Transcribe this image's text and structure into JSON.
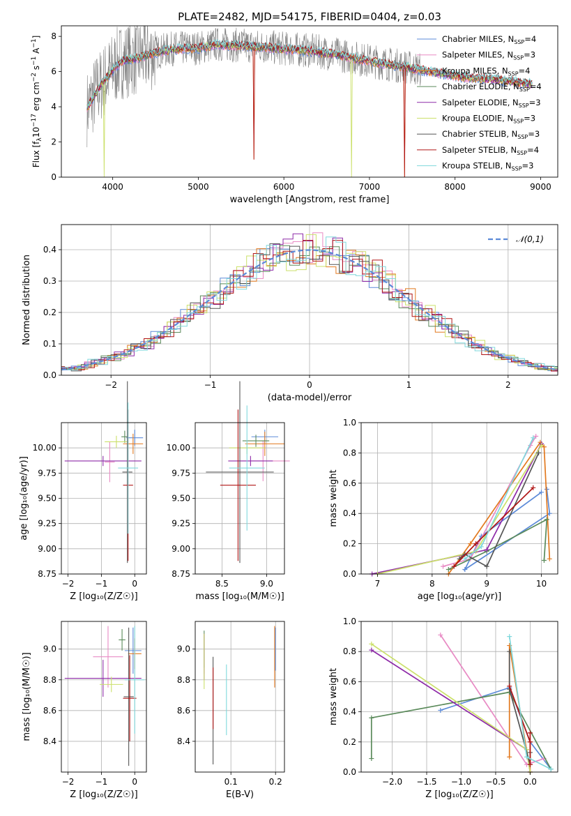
{
  "figure_title": "PLATE=2482, MJD=54175, FIBERID=0404, z=0.03",
  "models": [
    {
      "name": "Chabrier MILES, N",
      "sub": "SSP",
      "tail": "=4",
      "color": "#5b8ad8"
    },
    {
      "name": "Salpeter MILES, N",
      "sub": "SSP",
      "tail": "=3",
      "color": "#e88ac4"
    },
    {
      "name": "Kroupa MILES, N",
      "sub": "SSP",
      "tail": "=4",
      "color": "#e2791f"
    },
    {
      "name": "Chabrier ELODIE, N",
      "sub": "SSP",
      "tail": "=4",
      "color": "#5a8a5a"
    },
    {
      "name": "Salpeter ELODIE, N",
      "sub": "SSP",
      "tail": "=3",
      "color": "#8e2aa8"
    },
    {
      "name": "Kroupa ELODIE, N",
      "sub": "SSP",
      "tail": "=3",
      "color": "#cbe06a"
    },
    {
      "name": "Chabrier STELIB, N",
      "sub": "SSP",
      "tail": "=3",
      "color": "#555555"
    },
    {
      "name": "Salpeter STELIB, N",
      "sub": "SSP",
      "tail": "=4",
      "color": "#b01515"
    },
    {
      "name": "Kroupa STELIB, N",
      "sub": "SSP",
      "tail": "=3",
      "color": "#7fd8dc"
    }
  ],
  "chart_data": [
    {
      "id": "spectrum",
      "type": "line",
      "xlabel": "wavelength [Angstrom, rest frame]",
      "ylabel_main": "Flux [f",
      "ylabel_sub": "λ",
      "ylabel_rest": "10",
      "ylabel_sup1": "−17",
      "ylabel_mid": " erg cm",
      "ylabel_sup2": "−2",
      "ylabel_mid2": " s",
      "ylabel_sup3": "−1",
      "ylabel_end": " A",
      "ylabel_sup4": "−1",
      "ylabel_close": "]",
      "xlim": [
        3400,
        9200
      ],
      "ylim": [
        0,
        8.6
      ],
      "xticks": [
        4000,
        5000,
        6000,
        7000,
        8000,
        9000
      ],
      "yticks": [
        0,
        2,
        4,
        6,
        8
      ],
      "data_color": "#808080",
      "continuum": [
        [
          3700,
          3.9
        ],
        [
          3800,
          4.8
        ],
        [
          3900,
          5.5
        ],
        [
          4000,
          6.1
        ],
        [
          4100,
          6.6
        ],
        [
          4300,
          6.8
        ],
        [
          4500,
          7.1
        ],
        [
          4700,
          7.3
        ],
        [
          5000,
          7.35
        ],
        [
          5200,
          7.55
        ],
        [
          5500,
          7.5
        ],
        [
          5800,
          7.4
        ],
        [
          6000,
          7.3
        ],
        [
          6300,
          7.2
        ],
        [
          6600,
          7.0
        ],
        [
          6900,
          6.7
        ],
        [
          7200,
          6.45
        ],
        [
          7500,
          6.2
        ],
        [
          7800,
          5.95
        ],
        [
          8100,
          5.7
        ],
        [
          8400,
          5.6
        ],
        [
          8700,
          5.45
        ],
        [
          8900,
          5.3
        ]
      ]
    },
    {
      "id": "residuals",
      "type": "bar",
      "xlabel": "(data-model)/error",
      "ylabel": "Normed distribution",
      "xlim": [
        -2.5,
        2.5
      ],
      "ylim": [
        0,
        0.48
      ],
      "xticks": [
        -2,
        -1,
        0,
        1,
        2
      ],
      "yticks": [
        0,
        0.1,
        0.2,
        0.3,
        0.4
      ],
      "reference_label": "𝒩(0,1)",
      "reference_color": "#5b8ad8"
    },
    {
      "id": "age_vs_Z",
      "type": "scatter",
      "xlabel": "Z [log₁₀(Z/Z☉)]",
      "ylabel": "age  [log₁₀(age/yr)]",
      "xlim": [
        -2.2,
        0.35
      ],
      "ylim": [
        8.75,
        10.25
      ],
      "xticks": [
        -2,
        -1,
        0
      ],
      "yticks": [
        8.75,
        9.0,
        9.25,
        9.5,
        9.75,
        10.0
      ],
      "points": [
        {
          "x": 0.0,
          "y": 10.1,
          "xerr": 0.25,
          "yerr": 0.08
        },
        {
          "x": -0.75,
          "y": 9.86,
          "xerr": 0.15,
          "yerr": 0.2
        },
        {
          "x": -0.05,
          "y": 10.04,
          "xerr": 0.3,
          "yerr": 0.1
        },
        {
          "x": -0.3,
          "y": 10.11,
          "xerr": 0.1,
          "yerr": 0.06
        },
        {
          "x": -0.95,
          "y": 9.87,
          "xerr": 1.15,
          "yerr": 0.05
        },
        {
          "x": -0.55,
          "y": 10.06,
          "xerr": 0.35,
          "yerr": 0.06
        },
        {
          "x": -0.22,
          "y": 9.76,
          "xerr": 0.15,
          "yerr": 0.9
        },
        {
          "x": -0.2,
          "y": 9.63,
          "xerr": 0.15,
          "yerr": 0.75
        },
        {
          "x": -0.2,
          "y": 9.8,
          "xerr": 0.3,
          "yerr": 0.65
        }
      ]
    },
    {
      "id": "age_vs_mass",
      "type": "scatter",
      "xlabel": "mass [log₁₀(M/M☉)]",
      "ylabel": "",
      "xlim": [
        8.2,
        9.2
      ],
      "ylim": [
        8.75,
        10.25
      ],
      "xticks": [
        8.5,
        9.0
      ],
      "yticks": [
        8.75,
        9.0,
        9.25,
        9.5,
        9.75,
        10.0
      ],
      "points": [
        {
          "x": 8.98,
          "y": 10.11,
          "xerr": 0.15,
          "yerr": 0.07
        },
        {
          "x": 8.96,
          "y": 9.87,
          "xerr": 0.3,
          "yerr": 0.2
        },
        {
          "x": 8.98,
          "y": 10.04,
          "xerr": 0.22,
          "yerr": 0.12
        },
        {
          "x": 8.88,
          "y": 10.07,
          "xerr": 0.15,
          "yerr": 0.06
        },
        {
          "x": 8.82,
          "y": 9.87,
          "xerr": 0.25,
          "yerr": 0.05
        },
        {
          "x": 8.78,
          "y": 10.0,
          "xerr": 0.2,
          "yerr": 0.06
        },
        {
          "x": 8.7,
          "y": 9.76,
          "xerr": 0.38,
          "yerr": 0.9
        },
        {
          "x": 8.68,
          "y": 9.63,
          "xerr": 0.2,
          "yerr": 0.75
        },
        {
          "x": 8.78,
          "y": 9.8,
          "xerr": 0.2,
          "yerr": 0.62
        }
      ]
    },
    {
      "id": "weight_vs_age",
      "type": "line",
      "xlabel": "age  [log₁₀(age/yr)]",
      "ylabel": "mass weight",
      "xlim": [
        6.7,
        10.3
      ],
      "ylim": [
        0,
        1.0
      ],
      "xticks": [
        7,
        8,
        9,
        10
      ],
      "yticks": [
        0,
        0.2,
        0.4,
        0.6,
        0.8,
        1.0
      ],
      "series": [
        {
          "name": "Chabrier MILES",
          "x": [
            10.1,
            10.15,
            8.6,
            8.9,
            10.0
          ],
          "y": [
            0.56,
            0.4,
            0.03,
            0.25,
            0.54
          ]
        },
        {
          "name": "Salpeter MILES",
          "x": [
            9.9,
            9.8,
            8.7,
            8.2
          ],
          "y": [
            0.91,
            0.85,
            0.1,
            0.05
          ]
        },
        {
          "name": "Kroupa MILES",
          "x": [
            10.15,
            10.05,
            9.98,
            8.7,
            8.3
          ],
          "y": [
            0.1,
            0.84,
            0.87,
            0.2,
            0.0
          ]
        },
        {
          "name": "Chabrier ELODIE",
          "x": [
            10.05,
            10.1,
            9.0,
            8.3
          ],
          "y": [
            0.09,
            0.36,
            0.15,
            0.03
          ]
        },
        {
          "name": "Salpeter ELODIE",
          "x": [
            10.0,
            9.0,
            6.9
          ],
          "y": [
            0.86,
            0.16,
            0.0
          ]
        },
        {
          "name": "Kroupa ELODIE",
          "x": [
            10.0,
            8.8,
            7.0
          ],
          "y": [
            0.85,
            0.15,
            0.0
          ]
        },
        {
          "name": "Chabrier STELIB",
          "x": [
            9.95,
            9.0,
            8.6,
            8.5
          ],
          "y": [
            0.8,
            0.05,
            0.13,
            0.1
          ]
        },
        {
          "name": "Salpeter STELIB",
          "x": [
            9.85,
            8.8,
            8.4
          ],
          "y": [
            0.57,
            0.2,
            0.05
          ]
        },
        {
          "name": "Kroupa STELIB",
          "x": [
            9.85,
            8.9,
            8.6
          ],
          "y": [
            0.9,
            0.18,
            0.1
          ]
        }
      ]
    },
    {
      "id": "mass_vs_Z",
      "type": "scatter",
      "xlabel": "Z [log₁₀(Z/Z☉)]",
      "ylabel": "mass [log₁₀(M/M☉)]",
      "xlim": [
        -2.2,
        0.35
      ],
      "ylim": [
        8.2,
        9.18
      ],
      "xticks": [
        -2,
        -1,
        0
      ],
      "yticks": [
        8.4,
        8.6,
        8.8,
        9.0
      ],
      "points": [
        {
          "x": -0.05,
          "y": 8.99,
          "xerr": 0.25,
          "yerr": 0.15
        },
        {
          "x": -0.8,
          "y": 8.95,
          "xerr": 0.45,
          "yerr": 0.2
        },
        {
          "x": 0.0,
          "y": 8.97,
          "xerr": 0.2,
          "yerr": 0.1
        },
        {
          "x": -0.38,
          "y": 9.06,
          "xerr": 0.1,
          "yerr": 0.07
        },
        {
          "x": -0.95,
          "y": 8.81,
          "xerr": 1.15,
          "yerr": 0.12
        },
        {
          "x": -0.7,
          "y": 8.77,
          "xerr": 0.35,
          "yerr": 0.05
        },
        {
          "x": -0.18,
          "y": 8.69,
          "xerr": 0.15,
          "yerr": 0.45
        },
        {
          "x": -0.15,
          "y": 8.68,
          "xerr": 0.2,
          "yerr": 0.28
        },
        {
          "x": 0.0,
          "y": 8.8,
          "xerr": 0.3,
          "yerr": 0.35
        }
      ]
    },
    {
      "id": "mass_vs_ebv",
      "type": "scatter",
      "xlabel": "E(B-V)",
      "ylabel": "",
      "xlim": [
        0.02,
        0.22
      ],
      "ylim": [
        8.2,
        9.18
      ],
      "xticks": [
        0.1,
        0.2
      ],
      "yticks": [
        8.4,
        8.6,
        8.8,
        9.0
      ],
      "points": [
        {
          "x": 0.2,
          "y": 9.0,
          "yerr": 0.14
        },
        {
          "x": 0.04,
          "y": 8.97,
          "yerr": 0.13
        },
        {
          "x": 0.198,
          "y": 8.95,
          "yerr": 0.2
        },
        {
          "x": 0.04,
          "y": 9.0,
          "yerr": 0.12
        },
        {
          "x": 0.04,
          "y": 8.95,
          "yerr": 0.15
        },
        {
          "x": 0.04,
          "y": 8.92,
          "yerr": 0.18
        },
        {
          "x": 0.06,
          "y": 8.6,
          "yerr": 0.35
        },
        {
          "x": 0.06,
          "y": 8.68,
          "yerr": 0.2
        },
        {
          "x": 0.09,
          "y": 8.67,
          "yerr": 0.23
        }
      ]
    },
    {
      "id": "weight_vs_Z",
      "type": "line",
      "xlabel": "Z [log₁₀(Z/Z☉)]",
      "ylabel": "mass weight",
      "xlim": [
        -2.45,
        0.4
      ],
      "ylim": [
        0,
        1.0
      ],
      "xticks": [
        -2.0,
        -1.5,
        -1.0,
        -0.5,
        0.0
      ],
      "yticks": [
        0,
        0.2,
        0.4,
        0.6,
        0.8,
        1.0
      ],
      "series": [
        {
          "name": "Chabrier MILES",
          "x": [
            -1.3,
            -0.3,
            0.0,
            0.3
          ],
          "y": [
            0.41,
            0.56,
            0.2,
            0.02
          ]
        },
        {
          "name": "Salpeter MILES",
          "x": [
            -1.3,
            -0.05,
            0.2
          ],
          "y": [
            0.91,
            0.05,
            0.09
          ]
        },
        {
          "name": "Kroupa MILES",
          "x": [
            -0.3,
            -0.3,
            0.0,
            0.0
          ],
          "y": [
            0.1,
            0.84,
            0.0,
            0.2
          ]
        },
        {
          "name": "Chabrier ELODIE",
          "x": [
            -2.3,
            -2.3,
            -0.3,
            0.3
          ],
          "y": [
            0.09,
            0.36,
            0.53,
            0.02
          ]
        },
        {
          "name": "Salpeter ELODIE",
          "x": [
            -2.3,
            -0.05,
            0.0
          ],
          "y": [
            0.81,
            0.15,
            0.0
          ]
        },
        {
          "name": "Kroupa ELODIE",
          "x": [
            -2.3,
            -0.05,
            0.0
          ],
          "y": [
            0.85,
            0.15,
            0.0
          ]
        },
        {
          "name": "Chabrier STELIB",
          "x": [
            -0.3,
            -0.3,
            0.0,
            0.0
          ],
          "y": [
            0.8,
            0.55,
            0.05,
            0.13
          ]
        },
        {
          "name": "Salpeter STELIB",
          "x": [
            -0.3,
            0.0,
            0.0,
            0.0
          ],
          "y": [
            0.57,
            0.2,
            0.26,
            0.05
          ]
        },
        {
          "name": "Kroupa STELIB",
          "x": [
            -0.3,
            -0.05,
            0.3
          ],
          "y": [
            0.9,
            0.1,
            0.02
          ]
        }
      ]
    }
  ]
}
